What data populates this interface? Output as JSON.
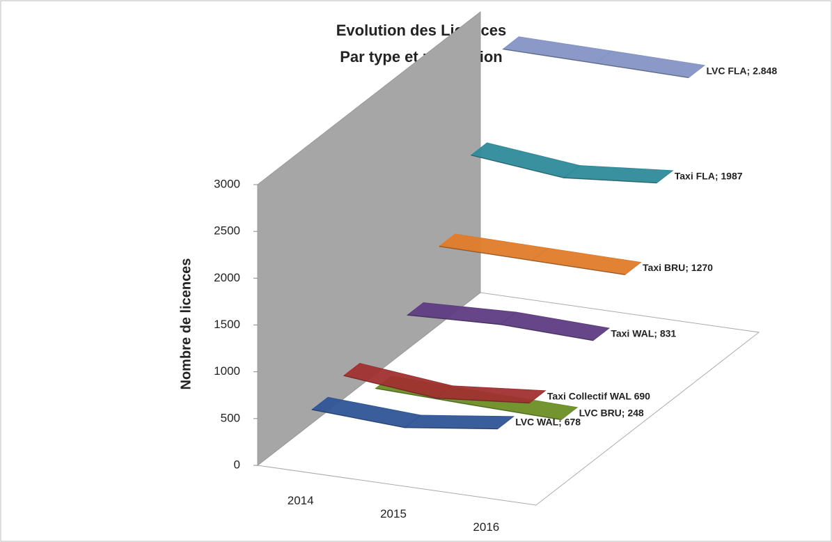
{
  "chart_data": {
    "type": "line3d",
    "title": "Evolution des Licences",
    "subtitle": "Par type et par Région",
    "y_label": "Nombre de licences",
    "categories": [
      "2014",
      "2015",
      "2016"
    ],
    "ylim": [
      0,
      3000
    ],
    "yticks": [
      0,
      500,
      1000,
      1500,
      2000,
      2500,
      3000
    ],
    "series": [
      {
        "color": "#2f5597",
        "values": [
          600,
          550,
          678
        ],
        "value_labels": [
          null,
          null,
          "LVC  WAL; 678"
        ]
      },
      {
        "color": "#a03030",
        "values": [
          700,
          600,
          690
        ],
        "value_labels": [
          null,
          null,
          "Taxi Collectif WAL 690"
        ]
      },
      {
        "color": "#6b8e23",
        "values": [
          300,
          270,
          248
        ],
        "value_labels": [
          null,
          null,
          "LVC  BRU; 248"
        ]
      },
      {
        "color": "#5e3c82",
        "values": [
          820,
          860,
          831
        ],
        "value_labels": [
          null,
          null,
          "Taxi  WAL; 831"
        ]
      },
      {
        "color": "#e07b2a",
        "values": [
          1290,
          1280,
          1270
        ],
        "value_labels": [
          null,
          null,
          "Taxi  BRU; 1270"
        ]
      },
      {
        "color": "#2e8a9a",
        "values": [
          2000,
          1900,
          1987
        ],
        "value_labels": [
          null,
          null,
          "Taxi  FLA; 1987"
        ]
      },
      {
        "color": "#8494c4",
        "values": [
          2870,
          2860,
          2848
        ],
        "value_labels": [
          null,
          null,
          "LVC  FLA; 2.848"
        ]
      }
    ]
  }
}
